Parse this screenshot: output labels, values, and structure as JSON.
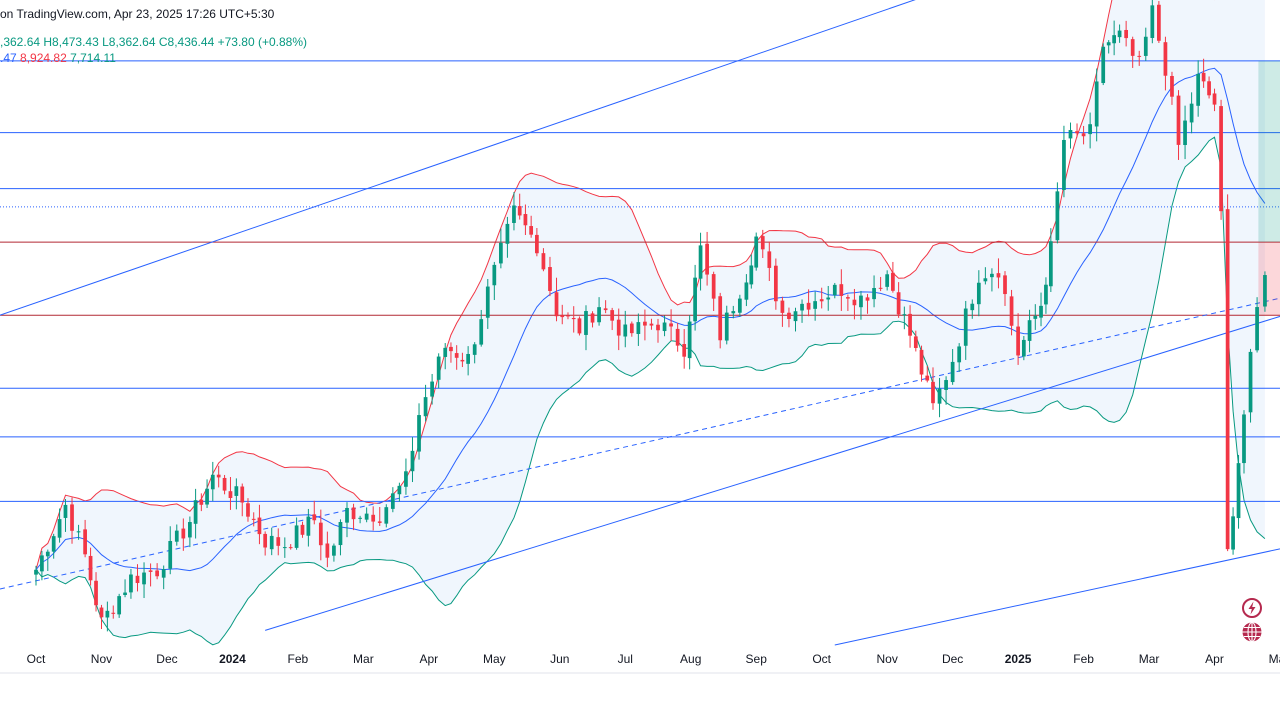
{
  "header": {
    "source": "on TradingView.com, Apr 23, 2025 17:26 UTC+5:30",
    "ohlc_open": ",362.64",
    "ohlc_high": "H8,473.43",
    "ohlc_low": "L8,362.64",
    "ohlc_close": "C8,436.44",
    "ohlc_change": "+73.80 (+0.88%)",
    "bb_basis": ".47",
    "bb_upper": "8,924.82",
    "bb_lower": "7,714.11"
  },
  "colors": {
    "up": "#089981",
    "down": "#f23645",
    "basis": "#2962ff",
    "upper_band": "#f23645",
    "lower_band": "#089981",
    "band_fill": "#e3effb",
    "levels": "#2962ff",
    "red_level": "#b22833"
  },
  "icons": [
    "lightning-icon",
    "globe-icon"
  ],
  "chart_data": {
    "type": "candlestick",
    "indicator": "Bollinger Bands",
    "x_ticks": [
      {
        "label": "Oct",
        "x": 0.0
      },
      {
        "label": "Nov",
        "x": 1.0
      },
      {
        "label": "Dec",
        "x": 2.0
      },
      {
        "label": "2024",
        "x": 3.0,
        "bold": true
      },
      {
        "label": "Feb",
        "x": 4.0
      },
      {
        "label": "Mar",
        "x": 5.0
      },
      {
        "label": "Apr",
        "x": 6.0
      },
      {
        "label": "May",
        "x": 7.0
      },
      {
        "label": "Jun",
        "x": 8.0
      },
      {
        "label": "Jul",
        "x": 9.0
      },
      {
        "label": "Aug",
        "x": 10.0
      },
      {
        "label": "Sep",
        "x": 11.0
      },
      {
        "label": "Oct",
        "x": 12.0
      },
      {
        "label": "Nov",
        "x": 13.0
      },
      {
        "label": "Dec",
        "x": 14.0
      },
      {
        "label": "2025",
        "x": 15.0,
        "bold": true
      },
      {
        "label": "Feb",
        "x": 16.0
      },
      {
        "label": "Mar",
        "x": 17.0
      },
      {
        "label": "Apr",
        "x": 18.0
      },
      {
        "label": "May",
        "x": 19.0
      }
    ],
    "x_range": [
      -0.55,
      19.0
    ],
    "y_range": [
      5400,
      10700
    ],
    "horizontal_levels": [
      {
        "value": 10200,
        "style": "solid",
        "color": "#2962ff"
      },
      {
        "value": 9610,
        "style": "solid",
        "color": "#2962ff"
      },
      {
        "value": 9150,
        "style": "solid",
        "color": "#2962ff"
      },
      {
        "value": 9000,
        "style": "dotted",
        "color": "#2962ff"
      },
      {
        "value": 8710,
        "style": "solid",
        "color": "#b22833"
      },
      {
        "value": 8110,
        "style": "solid",
        "color": "#b22833"
      },
      {
        "value": 7510,
        "style": "solid",
        "color": "#2962ff"
      },
      {
        "value": 7110,
        "style": "solid",
        "color": "#2962ff"
      },
      {
        "value": 6580,
        "style": "solid",
        "color": "#2962ff"
      }
    ],
    "trendlines": [
      {
        "x1": -0.55,
        "y1": 8110,
        "x2": 15.3,
        "y2": 11050,
        "style": "solid"
      },
      {
        "x1": 3.5,
        "y1": 5520,
        "x2": 19.0,
        "y2": 8100,
        "style": "solid"
      },
      {
        "x1": -0.55,
        "y1": 5860,
        "x2": 19.0,
        "y2": 8250,
        "style": "dashed"
      },
      {
        "x1": 12.2,
        "y1": 5400,
        "x2": 19.0,
        "y2": 6190,
        "style": "solid"
      }
    ],
    "position_box": {
      "x1": 18.67,
      "x2": 19.0,
      "entry": 8710,
      "target": 10200,
      "stop": 8110
    },
    "waypoints": [
      [
        0.0,
        6020
      ],
      [
        0.45,
        6550
      ],
      [
        0.75,
        6130
      ],
      [
        1.0,
        5580
      ],
      [
        1.45,
        5950
      ],
      [
        1.85,
        6020
      ],
      [
        2.35,
        6420
      ],
      [
        2.7,
        6790
      ],
      [
        3.15,
        6580
      ],
      [
        3.5,
        6260
      ],
      [
        3.8,
        6230
      ],
      [
        4.25,
        6430
      ],
      [
        4.45,
        6100
      ],
      [
        4.75,
        6500
      ],
      [
        5.25,
        6480
      ],
      [
        5.65,
        6750
      ],
      [
        5.85,
        7300
      ],
      [
        6.25,
        7850
      ],
      [
        6.6,
        7750
      ],
      [
        6.9,
        8300
      ],
      [
        7.3,
        8950
      ],
      [
        7.65,
        8700
      ],
      [
        7.95,
        8150
      ],
      [
        8.3,
        8000
      ],
      [
        8.6,
        8200
      ],
      [
        9.0,
        7950
      ],
      [
        9.5,
        8050
      ],
      [
        9.9,
        7850
      ],
      [
        10.15,
        8650
      ],
      [
        10.45,
        7950
      ],
      [
        10.85,
        8450
      ],
      [
        11.0,
        8750
      ],
      [
        11.4,
        8130
      ],
      [
        11.8,
        8230
      ],
      [
        12.3,
        8330
      ],
      [
        12.6,
        8250
      ],
      [
        13.0,
        8450
      ],
      [
        13.35,
        7950
      ],
      [
        13.7,
        7350
      ],
      [
        14.0,
        7750
      ],
      [
        14.4,
        8450
      ],
      [
        14.7,
        8500
      ],
      [
        15.0,
        7800
      ],
      [
        15.35,
        8200
      ],
      [
        15.5,
        8650
      ],
      [
        15.7,
        9550
      ],
      [
        16.1,
        9600
      ],
      [
        16.3,
        10330
      ],
      [
        16.55,
        10400
      ],
      [
        16.85,
        10150
      ],
      [
        17.05,
        10600
      ],
      [
        17.25,
        10150
      ],
      [
        17.45,
        9500
      ],
      [
        17.75,
        10050
      ],
      [
        18.0,
        9850
      ],
      [
        18.1,
        8900
      ],
      [
        18.2,
        6150
      ],
      [
        18.45,
        7300
      ],
      [
        18.65,
        8150
      ],
      [
        18.77,
        8440
      ]
    ]
  }
}
